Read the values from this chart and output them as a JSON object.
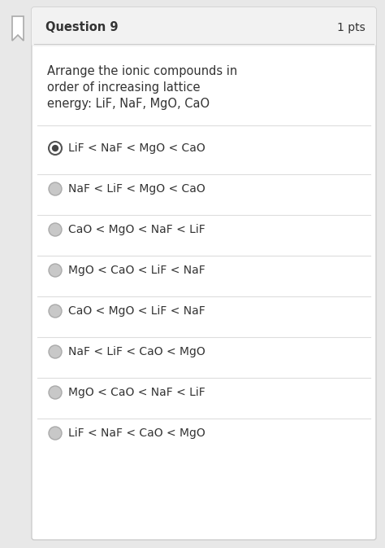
{
  "bg_color": "#e8e8e8",
  "card_bg": "#ffffff",
  "card_border": "#cccccc",
  "header_bg": "#f2f2f2",
  "header_border": "#cccccc",
  "question_title": "Question 9",
  "question_pts": "1 pts",
  "question_text_lines": [
    "Arrange the ionic compounds in",
    "order of increasing lattice",
    "energy: LiF, NaF, MgO, CaO"
  ],
  "options": [
    "LiF < NaF < MgO < CaO",
    "NaF < LiF < MgO < CaO",
    "CaO < MgO < NaF < LiF",
    "MgO < CaO < LiF < NaF",
    "CaO < MgO < LiF < NaF",
    "NaF < LiF < CaO < MgO",
    "MgO < CaO < NaF < LiF",
    "LiF < NaF < CaO < MgO"
  ],
  "selected_option": 0,
  "title_fontsize": 10.5,
  "pts_fontsize": 10,
  "question_fontsize": 10.5,
  "option_fontsize": 10,
  "text_color": "#333333",
  "radio_selected_fill": "#444444",
  "radio_selected_border": "#555555",
  "radio_unselected_color": "#c8c8c8",
  "radio_unselected_border": "#aaaaaa",
  "separator_color": "#dddddd"
}
